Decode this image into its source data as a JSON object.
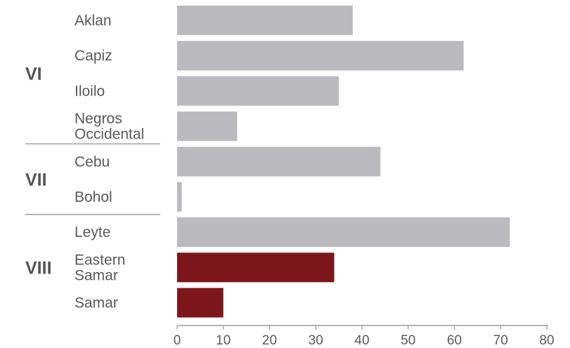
{
  "chart_data": {
    "type": "bar",
    "orientation": "horizontal",
    "groups": [
      {
        "label": "VI",
        "categories": [
          {
            "label": [
              "Aklan"
            ],
            "value": 38,
            "color": "#bbbbbf"
          },
          {
            "label": [
              "Capiz"
            ],
            "value": 62,
            "color": "#bbbbbf"
          },
          {
            "label": [
              "Iloilo"
            ],
            "value": 35,
            "color": "#bbbbbf"
          },
          {
            "label": [
              "Negros",
              "Occidental"
            ],
            "value": 13,
            "color": "#bbbbbf"
          }
        ]
      },
      {
        "label": "VII",
        "categories": [
          {
            "label": [
              "Cebu"
            ],
            "value": 44,
            "color": "#bbbbbf"
          },
          {
            "label": [
              "Bohol"
            ],
            "value": 1,
            "color": "#bbbbbf"
          }
        ]
      },
      {
        "label": "VIII",
        "categories": [
          {
            "label": [
              "Leyte"
            ],
            "value": 72,
            "color": "#bbbbbf"
          },
          {
            "label": [
              "Eastern",
              "Samar"
            ],
            "value": 34,
            "color": "#7d161b"
          },
          {
            "label": [
              "Samar"
            ],
            "value": 10,
            "color": "#7d161b"
          }
        ]
      }
    ],
    "xlim": [
      0,
      80
    ],
    "xticks": [
      0,
      10,
      20,
      30,
      40,
      50,
      60,
      70,
      80
    ],
    "grid": false,
    "legend": "none"
  }
}
